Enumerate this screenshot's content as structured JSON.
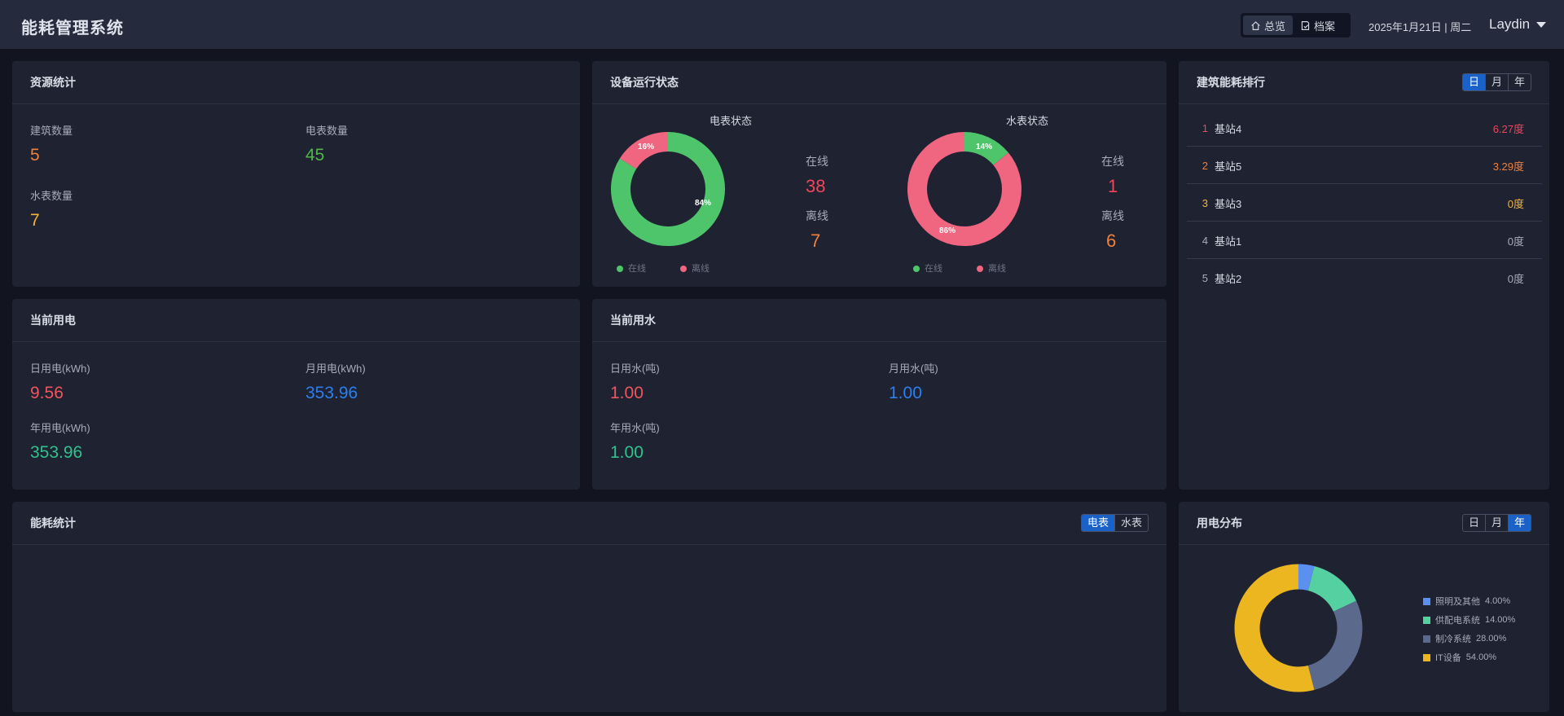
{
  "app": {
    "title": "能耗管理系统"
  },
  "nav": {
    "overview": "总览",
    "archive": "档案"
  },
  "header": {
    "date": "2025年1月21日 | 周二",
    "user": "Laydin"
  },
  "resource": {
    "title": "资源统计",
    "building_label": "建筑数量",
    "building_value": "5",
    "meter_label": "电表数量",
    "meter_value": "45",
    "water_label": "水表数量",
    "water_value": "7"
  },
  "device": {
    "title": "设备运行状态",
    "electric": {
      "title": "电表状态",
      "online_pct": "84%",
      "offline_pct": "16%",
      "online_label": "在线",
      "online_value": "38",
      "offline_label": "离线",
      "offline_value": "7",
      "online_fraction": 0.84
    },
    "water": {
      "title": "水表状态",
      "online_pct": "14%",
      "offline_pct": "86%",
      "online_label": "在线",
      "online_value": "1",
      "offline_label": "离线",
      "offline_value": "6",
      "online_fraction": 0.14
    },
    "legend_online": "在线",
    "legend_offline": "离线",
    "colors": {
      "online": "#4fc56b",
      "offline": "#f06681"
    }
  },
  "ranking": {
    "title": "建筑能耗排行",
    "tabs": [
      "日",
      "月",
      "年"
    ],
    "items": [
      {
        "rank": "1",
        "name": "基站4",
        "value": "6.27度",
        "color": "#f0455c"
      },
      {
        "rank": "2",
        "name": "基站5",
        "value": "3.29度",
        "color": "#f0803a"
      },
      {
        "rank": "3",
        "name": "基站3",
        "value": "0度",
        "color": "#f2b43c"
      },
      {
        "rank": "4",
        "name": "基站1",
        "value": "0度",
        "color": "#a7acb8"
      },
      {
        "rank": "5",
        "name": "基站2",
        "value": "0度",
        "color": "#a7acb8"
      }
    ]
  },
  "electricity": {
    "title": "当前用电",
    "day_label": "日用电(kWh)",
    "day_value": "9.56",
    "month_label": "月用电(kWh)",
    "month_value": "353.96",
    "year_label": "年用电(kWh)",
    "year_value": "353.96"
  },
  "water_use": {
    "title": "当前用水",
    "day_label": "日用水(吨)",
    "day_value": "1.00",
    "month_label": "月用水(吨)",
    "month_value": "1.00",
    "year_label": "年用水(吨)",
    "year_value": "1.00"
  },
  "energy": {
    "title": "能耗统计",
    "tabs": [
      "电表",
      "水表"
    ]
  },
  "distribution": {
    "title": "用电分布",
    "tabs": [
      "日",
      "月",
      "年"
    ],
    "items": [
      {
        "name": "照明及其他",
        "pct": "4.00%",
        "value": 4,
        "color": "#5b8ff0"
      },
      {
        "name": "供配电系统",
        "pct": "14.00%",
        "value": 14,
        "color": "#55d0a0"
      },
      {
        "name": "制冷系统",
        "pct": "28.00%",
        "value": 28,
        "color": "#5b6a8c"
      },
      {
        "name": "IT设备",
        "pct": "54.00%",
        "value": 54,
        "color": "#ebb61f"
      }
    ]
  }
}
